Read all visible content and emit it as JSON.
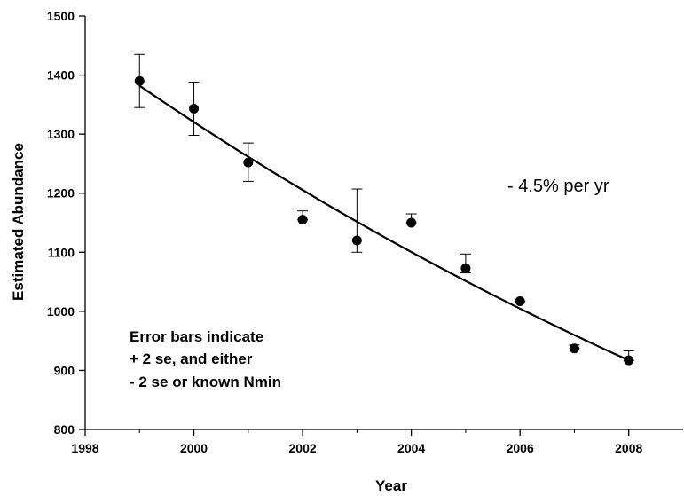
{
  "chart_data": {
    "type": "scatter",
    "xlabel": "Year",
    "ylabel": "Estimated Abundance",
    "xlim": [
      1998,
      2009
    ],
    "ylim": [
      800,
      1500
    ],
    "x_ticks": [
      1998,
      2000,
      2002,
      2004,
      2006,
      2008
    ],
    "y_ticks": [
      800,
      900,
      1000,
      1100,
      1200,
      1300,
      1400,
      1500
    ],
    "points": [
      {
        "x": 1999,
        "y": 1390,
        "err_low": 1345,
        "err_high": 1435
      },
      {
        "x": 2000,
        "y": 1343,
        "err_low": 1298,
        "err_high": 1388
      },
      {
        "x": 2001,
        "y": 1252,
        "err_low": 1220,
        "err_high": 1285
      },
      {
        "x": 2002,
        "y": 1155,
        "err_low": 1155,
        "err_high": 1170
      },
      {
        "x": 2003,
        "y": 1120,
        "err_low": 1100,
        "err_high": 1207
      },
      {
        "x": 2004,
        "y": 1150,
        "err_low": 1150,
        "err_high": 1165
      },
      {
        "x": 2005,
        "y": 1073,
        "err_low": 1065,
        "err_high": 1097
      },
      {
        "x": 2006,
        "y": 1017,
        "err_low": 1017,
        "err_high": 1017
      },
      {
        "x": 2007,
        "y": 937,
        "err_low": 937,
        "err_high": 943
      },
      {
        "x": 2008,
        "y": 917,
        "err_low": 917,
        "err_high": 933
      }
    ],
    "trend": {
      "type": "exponential",
      "x_start": 1999,
      "x_end": 2008,
      "y_start": 1382,
      "y_end": 917
    },
    "annotations": {
      "rate": "- 4.5% per yr",
      "note_lines": [
        "Error bars indicate",
        "+ 2 se, and either",
        "- 2 se or known Nmin"
      ]
    },
    "grid": false,
    "legend": "none"
  }
}
